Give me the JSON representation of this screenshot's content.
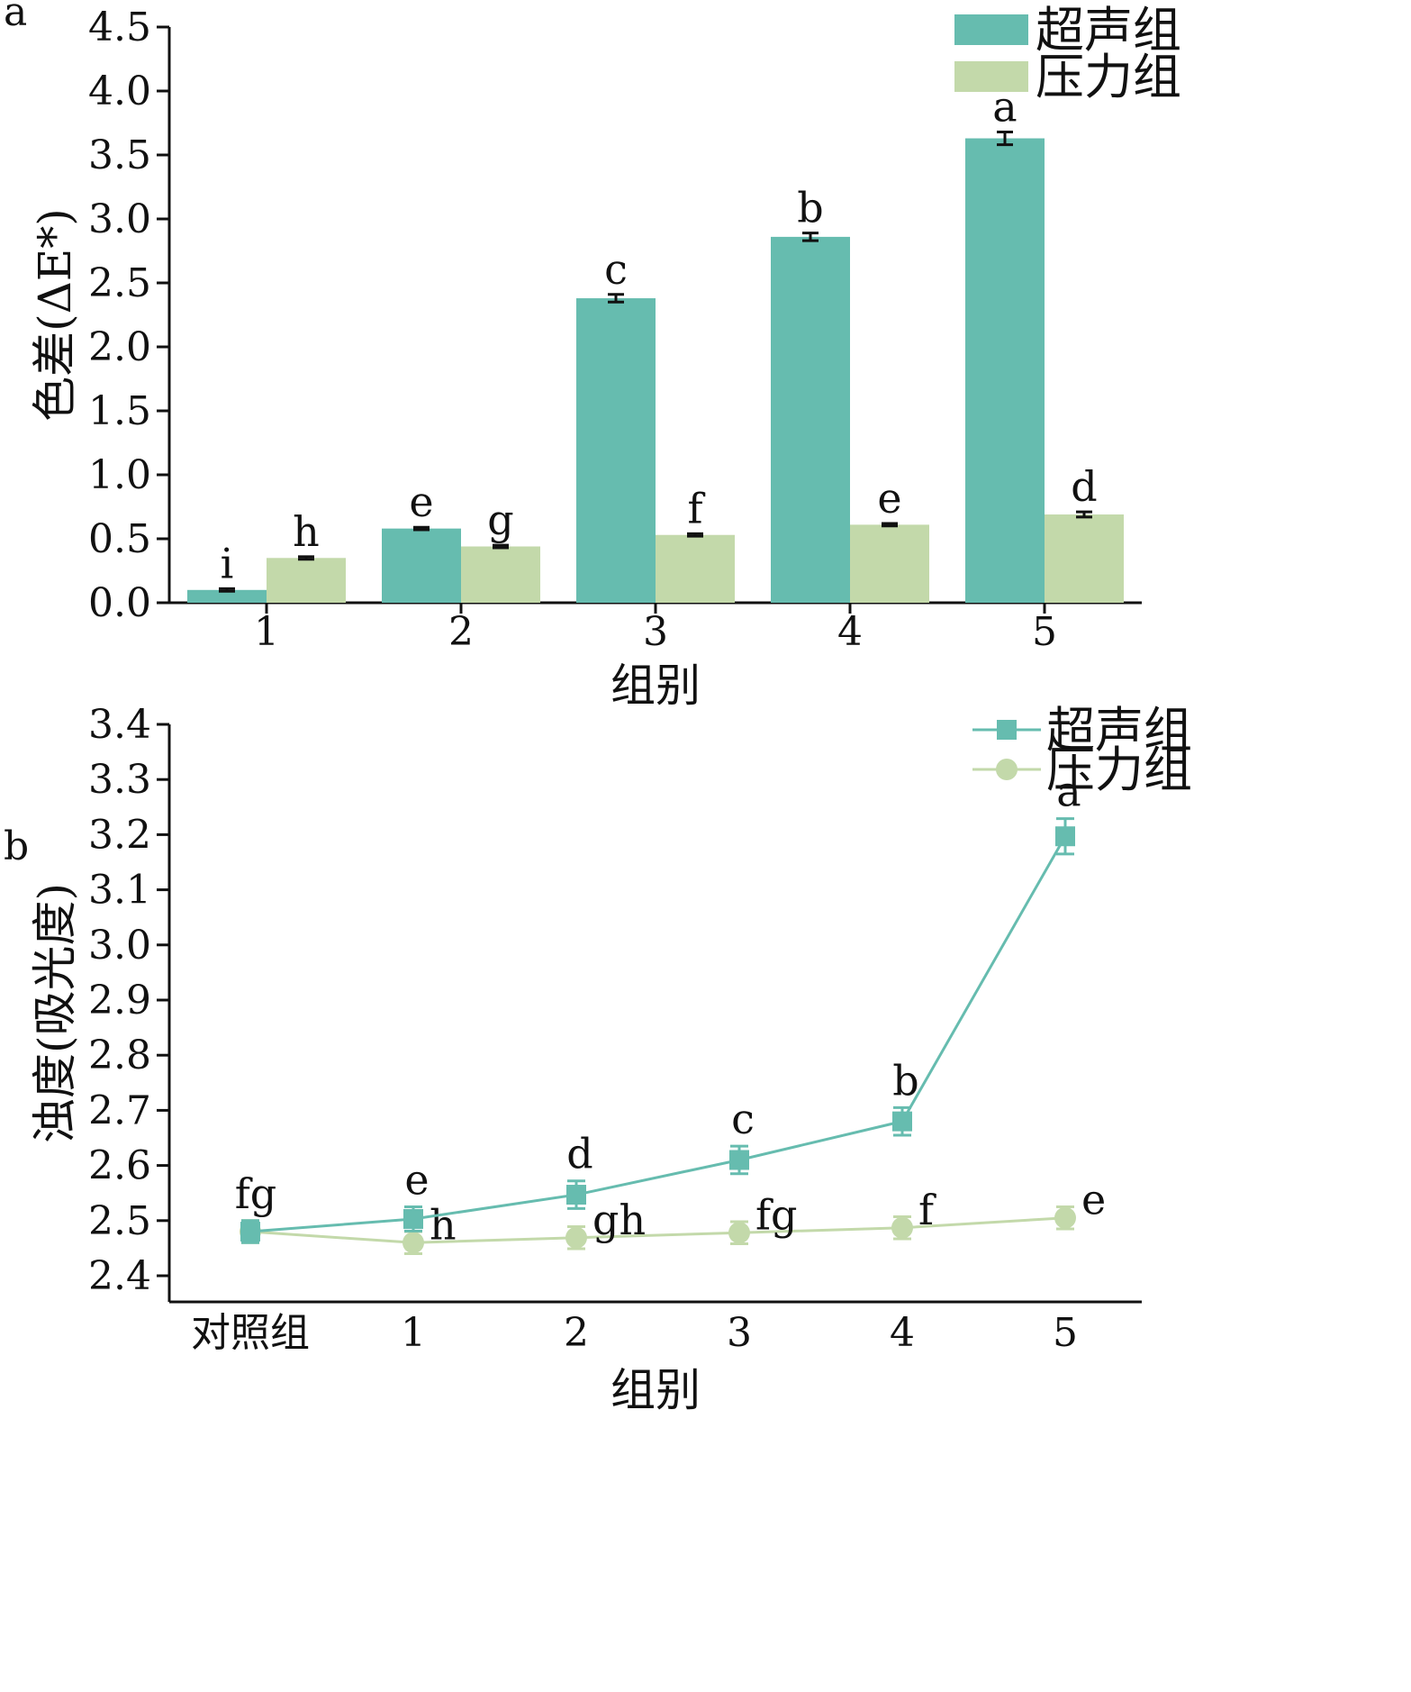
{
  "chart_data": [
    {
      "panel": "a",
      "type": "bar",
      "categories": [
        "1",
        "2",
        "3",
        "4",
        "5"
      ],
      "xlabel": "组别",
      "ylabel": "色差(ΔE*)",
      "ylim": [
        0,
        4.5
      ],
      "yticks": [
        "0.0",
        "0.5",
        "1.0",
        "1.5",
        "2.0",
        "2.5",
        "3.0",
        "3.5",
        "4.0",
        "4.5"
      ],
      "legend_position": "top-right",
      "series": [
        {
          "name": "超声组",
          "color": "#66bcaf",
          "values": [
            0.1,
            0.58,
            2.38,
            2.86,
            3.63
          ],
          "errors": [
            0.01,
            0.01,
            0.03,
            0.03,
            0.05
          ],
          "letters": [
            "i",
            "e",
            "c",
            "b",
            "a"
          ]
        },
        {
          "name": "压力组",
          "color": "#c3d9aa",
          "values": [
            0.35,
            0.44,
            0.53,
            0.61,
            0.69
          ],
          "errors": [
            0.01,
            0.01,
            0.01,
            0.01,
            0.02
          ],
          "letters": [
            "h",
            "g",
            "f",
            "e",
            "d"
          ]
        }
      ]
    },
    {
      "panel": "b",
      "type": "line",
      "categories": [
        "对照组",
        "1",
        "2",
        "3",
        "4",
        "5"
      ],
      "xlabel": "组别",
      "ylabel": "浊度(吸光度)",
      "ylim": [
        2.4,
        3.4
      ],
      "yticks": [
        "2.4",
        "2.5",
        "2.6",
        "2.7",
        "2.8",
        "2.9",
        "3.0",
        "3.1",
        "3.2",
        "3.3",
        "3.4"
      ],
      "legend_position": "top-right",
      "control_letter": "fg",
      "series": [
        {
          "name": "超声组",
          "color": "#66bcaf",
          "marker": "square",
          "values": [
            2.48,
            2.503,
            2.547,
            2.61,
            2.68,
            3.197
          ],
          "errors": [
            0.02,
            0.022,
            0.025,
            0.025,
            0.025,
            0.032
          ],
          "letters": [
            "",
            "e",
            "d",
            "c",
            "b",
            "a"
          ]
        },
        {
          "name": "压力组",
          "color": "#c3d9aa",
          "marker": "circle",
          "values": [
            2.48,
            2.46,
            2.469,
            2.478,
            2.487,
            2.505
          ],
          "errors": [
            0.02,
            0.02,
            0.02,
            0.02,
            0.02,
            0.02
          ],
          "letters": [
            "",
            "h",
            "gh",
            "fg",
            "f",
            "e"
          ]
        }
      ]
    }
  ],
  "panel_labels": {
    "a": "a",
    "b": "b"
  }
}
